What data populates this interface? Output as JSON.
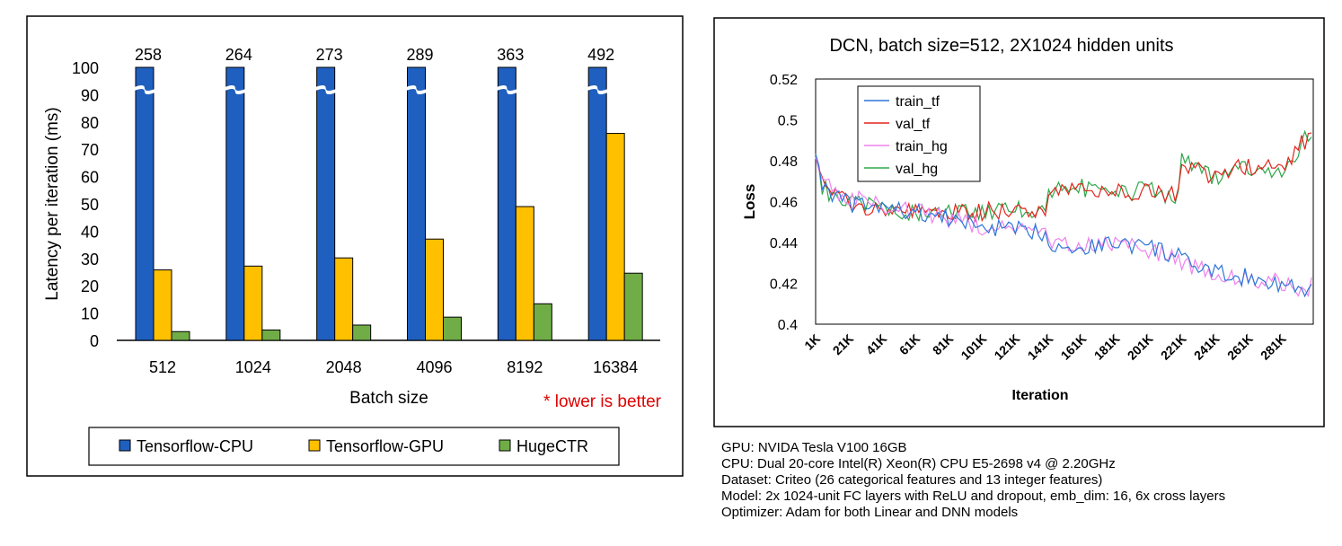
{
  "chart_data": [
    {
      "type": "bar",
      "xlabel": "Batch size",
      "ylabel": "Latency per iteration (ms)",
      "ylim": [
        0,
        100
      ],
      "yticks": [
        "0",
        "10",
        "20",
        "30",
        "40",
        "50",
        "60",
        "70",
        "80",
        "90",
        "100"
      ],
      "categories": [
        "512",
        "1024",
        "2048",
        "4096",
        "8192",
        "16384"
      ],
      "series": [
        {
          "name": "Tensorflow-CPU",
          "color": "#1f5fbf",
          "values": [
            258,
            264,
            273,
            289,
            363,
            492
          ]
        },
        {
          "name": "Tensorflow-GPU",
          "color": "#ffc000",
          "values": [
            25.8,
            27.2,
            30.2,
            37.1,
            49,
            75.8
          ]
        },
        {
          "name": "HugeCTR",
          "color": "#70ad47",
          "values": [
            3.2,
            3.8,
            5.6,
            8.5,
            13.4,
            24.6
          ]
        }
      ],
      "break_labels": [
        "258",
        "264",
        "273",
        "289",
        "363",
        "492"
      ],
      "annotation": "* lower is better",
      "annotation_color": "#e00000",
      "legend_position": "bottom"
    },
    {
      "type": "line",
      "title": "DCN, batch size=512, 2X1024 hidden units",
      "xlabel": "Iteration",
      "ylabel": "Loss",
      "ylim": [
        0.4,
        0.52
      ],
      "yticks": [
        "0.4",
        "0.42",
        "0.44",
        "0.46",
        "0.48",
        "0.5",
        "0.52"
      ],
      "xticks": [
        "1K",
        "21K",
        "41K",
        "61K",
        "81K",
        "101K",
        "121K",
        "141K",
        "161K",
        "181K",
        "201K",
        "221K",
        "241K",
        "261K",
        "281K"
      ],
      "xrange": [
        1,
        300
      ],
      "legend_position": "top-left",
      "series": [
        {
          "name": "train_tf",
          "color": "#2e75d6",
          "x": [
            1,
            5,
            20,
            40,
            60,
            80,
            100,
            120,
            140,
            141,
            160,
            180,
            200,
            220,
            221,
            240,
            260,
            280,
            295,
            300
          ],
          "y": [
            0.486,
            0.468,
            0.459,
            0.457,
            0.455,
            0.452,
            0.448,
            0.446,
            0.445,
            0.44,
            0.437,
            0.44,
            0.438,
            0.433,
            0.431,
            0.425,
            0.423,
            0.42,
            0.416,
            0.418
          ]
        },
        {
          "name": "val_tf",
          "color": "#e3241b",
          "x": [
            1,
            5,
            20,
            40,
            60,
            80,
            100,
            120,
            140,
            141,
            160,
            180,
            200,
            220,
            221,
            240,
            260,
            280,
            295,
            300
          ],
          "y": [
            0.486,
            0.468,
            0.459,
            0.457,
            0.455,
            0.454,
            0.455,
            0.456,
            0.456,
            0.465,
            0.467,
            0.464,
            0.466,
            0.462,
            0.479,
            0.472,
            0.478,
            0.475,
            0.49,
            0.494
          ]
        },
        {
          "name": "train_hg",
          "color": "#ee82ee",
          "x": [
            1,
            5,
            20,
            40,
            60,
            80,
            100,
            120,
            140,
            141,
            160,
            180,
            200,
            220,
            221,
            240,
            260,
            280,
            295,
            300
          ],
          "y": [
            0.484,
            0.47,
            0.462,
            0.458,
            0.456,
            0.452,
            0.448,
            0.446,
            0.444,
            0.439,
            0.437,
            0.44,
            0.437,
            0.432,
            0.43,
            0.425,
            0.423,
            0.42,
            0.415,
            0.42
          ]
        },
        {
          "name": "val_hg",
          "color": "#2ea84a",
          "x": [
            1,
            5,
            20,
            40,
            60,
            80,
            100,
            120,
            140,
            141,
            160,
            180,
            200,
            220,
            221,
            240,
            260,
            280,
            295,
            300
          ],
          "y": [
            0.486,
            0.467,
            0.459,
            0.457,
            0.455,
            0.455,
            0.455,
            0.456,
            0.456,
            0.466,
            0.467,
            0.463,
            0.466,
            0.462,
            0.48,
            0.472,
            0.477,
            0.474,
            0.49,
            0.493
          ]
        }
      ]
    }
  ],
  "specs": {
    "gpu": "GPU: NVIDA Tesla V100 16GB",
    "cpu": "CPU: Dual 20-core Intel(R) Xeon(R) CPU E5-2698 v4 @ 2.20GHz",
    "dataset": "Dataset: Criteo (26 categorical features and 13 integer features)",
    "model": "Model: 2x 1024-unit FC layers with ReLU and dropout, emb_dim: 16, 6x cross layers",
    "optimizer": "Optimizer: Adam for both Linear and DNN models"
  }
}
